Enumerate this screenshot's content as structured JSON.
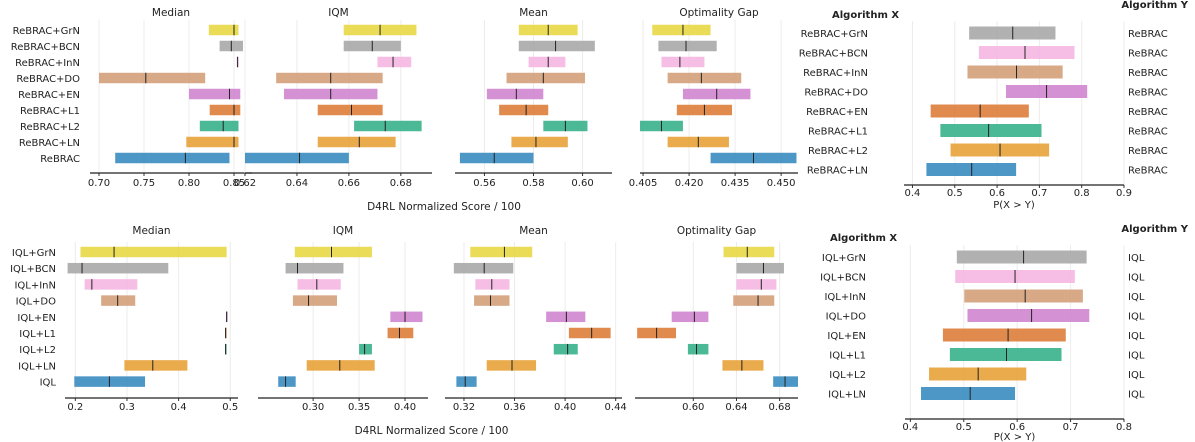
{
  "chart_data": [
    {
      "type": "interval",
      "group": "ReBRAC",
      "shared_xlabel": "D4RL Normalized Score / 100",
      "categories": [
        "ReBRAC+GrN",
        "ReBRAC+BCN",
        "ReBRAC+InN",
        "ReBRAC+DO",
        "ReBRAC+EN",
        "ReBRAC+L1",
        "ReBRAC+L2",
        "ReBRAC+LN",
        "ReBRAC"
      ],
      "colors": [
        "#e8d845",
        "#a8a8a8",
        "#f5b6e2",
        "#d4a07a",
        "#cf86cf",
        "#dd7d3a",
        "#38b18b",
        "#e8a23a",
        "#3a8cc0"
      ],
      "panels": [
        {
          "title": "Median",
          "xlim": [
            0.69,
            0.87
          ],
          "xticks": [
            0.7,
            0.75,
            0.8,
            0.85
          ],
          "ticklabels": [
            "0.70",
            "0.75",
            "0.80",
            "0.85"
          ],
          "intervals": [
            [
              0.822,
              0.855,
              0.85
            ],
            [
              0.834,
              0.86,
              0.847
            ],
            [
              0.853,
              0.855,
              0.854
            ],
            [
              0.7,
              0.818,
              0.752
            ],
            [
              0.8,
              0.857,
              0.845
            ],
            [
              0.823,
              0.857,
              0.85
            ],
            [
              0.812,
              0.855,
              0.838
            ],
            [
              0.797,
              0.855,
              0.85
            ],
            [
              0.718,
              0.845,
              0.796
            ]
          ]
        },
        {
          "title": "IQM",
          "xlim": [
            0.62,
            0.692
          ],
          "xticks": [
            0.62,
            0.64,
            0.66,
            0.68
          ],
          "ticklabels": [
            "0.62",
            "0.64",
            "0.66",
            "0.68"
          ],
          "intervals": [
            [
              0.658,
              0.686,
              0.672
            ],
            [
              0.658,
              0.68,
              0.669
            ],
            [
              0.671,
              0.684,
              0.677
            ],
            [
              0.632,
              0.673,
              0.653
            ],
            [
              0.635,
              0.671,
              0.653
            ],
            [
              0.648,
              0.673,
              0.661
            ],
            [
              0.662,
              0.688,
              0.674
            ],
            [
              0.648,
              0.678,
              0.664
            ],
            [
              0.62,
              0.66,
              0.641
            ]
          ]
        },
        {
          "title": "Mean",
          "xlim": [
            0.548,
            0.612
          ],
          "xticks": [
            0.56,
            0.58,
            0.6
          ],
          "ticklabels": [
            "0.56",
            "0.58",
            "0.60"
          ],
          "intervals": [
            [
              0.574,
              0.598,
              0.586
            ],
            [
              0.574,
              0.605,
              0.589
            ],
            [
              0.578,
              0.593,
              0.586
            ],
            [
              0.569,
              0.601,
              0.584
            ],
            [
              0.561,
              0.584,
              0.573
            ],
            [
              0.566,
              0.586,
              0.577
            ],
            [
              0.584,
              0.602,
              0.593
            ],
            [
              0.571,
              0.594,
              0.581
            ],
            [
              0.55,
              0.58,
              0.564
            ]
          ]
        },
        {
          "title": "Optimality Gap",
          "xlim": [
            0.404,
            0.4555
          ],
          "xticks": [
            0.405,
            0.42,
            0.435,
            0.45
          ],
          "ticklabels": [
            "0.405",
            "0.420",
            "0.435",
            "0.450"
          ],
          "intervals": [
            [
              0.408,
              0.427,
              0.418
            ],
            [
              0.41,
              0.429,
              0.419
            ],
            [
              0.411,
              0.425,
              0.417
            ],
            [
              0.413,
              0.437,
              0.424
            ],
            [
              0.418,
              0.44,
              0.429
            ],
            [
              0.416,
              0.434,
              0.425
            ],
            [
              0.404,
              0.418,
              0.411
            ],
            [
              0.413,
              0.433,
              0.423
            ],
            [
              0.427,
              0.455,
              0.441
            ]
          ]
        }
      ],
      "probability": {
        "xlabel": "P(X > Y)",
        "left_header": "Algorithm X",
        "right_header": "Algorithm Y",
        "xlim": [
          0.38,
          0.9
        ],
        "xticks": [
          0.4,
          0.5,
          0.6,
          0.7,
          0.8,
          0.9
        ],
        "ticklabels": [
          "0.4",
          "0.5",
          "0.6",
          "0.7",
          "0.8",
          "0.9"
        ],
        "x_labels": [
          "ReBRAC+GrN",
          "ReBRAC+BCN",
          "ReBRAC+InN",
          "ReBRAC+DO",
          "ReBRAC+EN",
          "ReBRAC+L1",
          "ReBRAC+L2",
          "ReBRAC+LN"
        ],
        "y_labels": [
          "ReBRAC",
          "ReBRAC",
          "ReBRAC",
          "ReBRAC",
          "ReBRAC",
          "ReBRAC",
          "ReBRAC",
          "ReBRAC"
        ],
        "colors": [
          "#a8a8a8",
          "#f5b6e2",
          "#d4a07a",
          "#cf86cf",
          "#dd7d3a",
          "#38b18b",
          "#e8a23a",
          "#3a8cc0"
        ],
        "intervals": [
          [
            0.534,
            0.738,
            0.637
          ],
          [
            0.557,
            0.783,
            0.666
          ],
          [
            0.53,
            0.755,
            0.646
          ],
          [
            0.621,
            0.813,
            0.717
          ],
          [
            0.443,
            0.675,
            0.56
          ],
          [
            0.466,
            0.705,
            0.58
          ],
          [
            0.49,
            0.723,
            0.607
          ],
          [
            0.433,
            0.645,
            0.54
          ]
        ]
      }
    },
    {
      "type": "interval",
      "group": "IQL",
      "shared_xlabel": "D4RL Normalized Score / 100",
      "categories": [
        "IQL+GrN",
        "IQL+BCN",
        "IQL+InN",
        "IQL+DO",
        "IQL+EN",
        "IQL+L1",
        "IQL+L2",
        "IQL+LN",
        "IQL"
      ],
      "colors": [
        "#e8d845",
        "#a8a8a8",
        "#f5b6e2",
        "#d4a07a",
        "#cf86cf",
        "#dd7d3a",
        "#38b18b",
        "#e8a23a",
        "#3a8cc0"
      ],
      "panels": [
        {
          "title": "Median",
          "xlim": [
            0.18,
            0.515
          ],
          "xticks": [
            0.2,
            0.3,
            0.4,
            0.5
          ],
          "ticklabels": [
            "0.2",
            "0.3",
            "0.4",
            "0.5"
          ],
          "intervals": [
            [
              0.21,
              0.493,
              0.275
            ],
            [
              0.185,
              0.38,
              0.213
            ],
            [
              0.218,
              0.32,
              0.232
            ],
            [
              0.25,
              0.316,
              0.282
            ],
            [
              0.492,
              0.494,
              0.493
            ],
            [
              0.49,
              0.492,
              0.491
            ],
            [
              0.49,
              0.492,
              0.491
            ],
            [
              0.295,
              0.417,
              0.35
            ],
            [
              0.198,
              0.335,
              0.266
            ]
          ]
        },
        {
          "title": "IQM",
          "xlim": [
            0.24,
            0.425
          ],
          "xticks": [
            0.3,
            0.35,
            0.4
          ],
          "ticklabels": [
            "0.30",
            "0.35",
            "0.40"
          ],
          "intervals": [
            [
              0.28,
              0.364,
              0.32
            ],
            [
              0.27,
              0.333,
              0.283
            ],
            [
              0.283,
              0.33,
              0.304
            ],
            [
              0.278,
              0.326,
              0.295
            ],
            [
              0.384,
              0.419,
              0.4
            ],
            [
              0.381,
              0.409,
              0.394
            ],
            [
              0.35,
              0.364,
              0.356
            ],
            [
              0.293,
              0.367,
              0.329
            ],
            [
              0.262,
              0.281,
              0.27
            ]
          ]
        },
        {
          "title": "Mean",
          "xlim": [
            0.305,
            0.445
          ],
          "xticks": [
            0.32,
            0.36,
            0.4,
            0.44
          ],
          "ticklabels": [
            "0.32",
            "0.36",
            "0.40",
            "0.44"
          ],
          "intervals": [
            [
              0.325,
              0.374,
              0.352
            ],
            [
              0.312,
              0.359,
              0.336
            ],
            [
              0.329,
              0.356,
              0.342
            ],
            [
              0.328,
              0.356,
              0.341
            ],
            [
              0.385,
              0.416,
              0.401
            ],
            [
              0.403,
              0.436,
              0.421
            ],
            [
              0.391,
              0.41,
              0.402
            ],
            [
              0.338,
              0.377,
              0.358
            ],
            [
              0.314,
              0.33,
              0.321
            ]
          ]
        },
        {
          "title": "Optimality Gap",
          "xlim": [
            0.546,
            0.697
          ],
          "xticks": [
            0.6,
            0.64,
            0.68
          ],
          "ticklabels": [
            "0.60",
            "0.64",
            "0.68"
          ],
          "intervals": [
            [
              0.628,
              0.675,
              0.65
            ],
            [
              0.64,
              0.684,
              0.665
            ],
            [
              0.64,
              0.677,
              0.663
            ],
            [
              0.637,
              0.675,
              0.66
            ],
            [
              0.58,
              0.614,
              0.601
            ],
            [
              0.548,
              0.584,
              0.566
            ],
            [
              0.595,
              0.614,
              0.603
            ],
            [
              0.627,
              0.665,
              0.645
            ],
            [
              0.674,
              0.697,
              0.685
            ]
          ]
        }
      ],
      "probability": {
        "xlabel": "P(X > Y)",
        "left_header": "Algorithm X",
        "right_header": "Algorithm Y",
        "xlim": [
          0.39,
          0.8
        ],
        "xticks": [
          0.4,
          0.5,
          0.6,
          0.7,
          0.8
        ],
        "ticklabels": [
          "0.4",
          "0.5",
          "0.6",
          "0.7",
          "0.8"
        ],
        "x_labels": [
          "IQL+GrN",
          "IQL+BCN",
          "IQL+InN",
          "IQL+DO",
          "IQL+EN",
          "IQL+L1",
          "IQL+L2",
          "IQL+LN"
        ],
        "y_labels": [
          "IQL",
          "IQL",
          "IQL",
          "IQL",
          "IQL",
          "IQL",
          "IQL",
          "IQL"
        ],
        "colors": [
          "#a8a8a8",
          "#f5b6e2",
          "#d4a07a",
          "#cf86cf",
          "#dd7d3a",
          "#38b18b",
          "#e8a23a",
          "#3a8cc0"
        ],
        "intervals": [
          [
            0.487,
            0.73,
            0.612
          ],
          [
            0.484,
            0.708,
            0.596
          ],
          [
            0.501,
            0.723,
            0.615
          ],
          [
            0.507,
            0.735,
            0.627
          ],
          [
            0.461,
            0.691,
            0.583
          ],
          [
            0.474,
            0.683,
            0.58
          ],
          [
            0.435,
            0.617,
            0.527
          ],
          [
            0.42,
            0.596,
            0.512
          ]
        ]
      }
    }
  ]
}
